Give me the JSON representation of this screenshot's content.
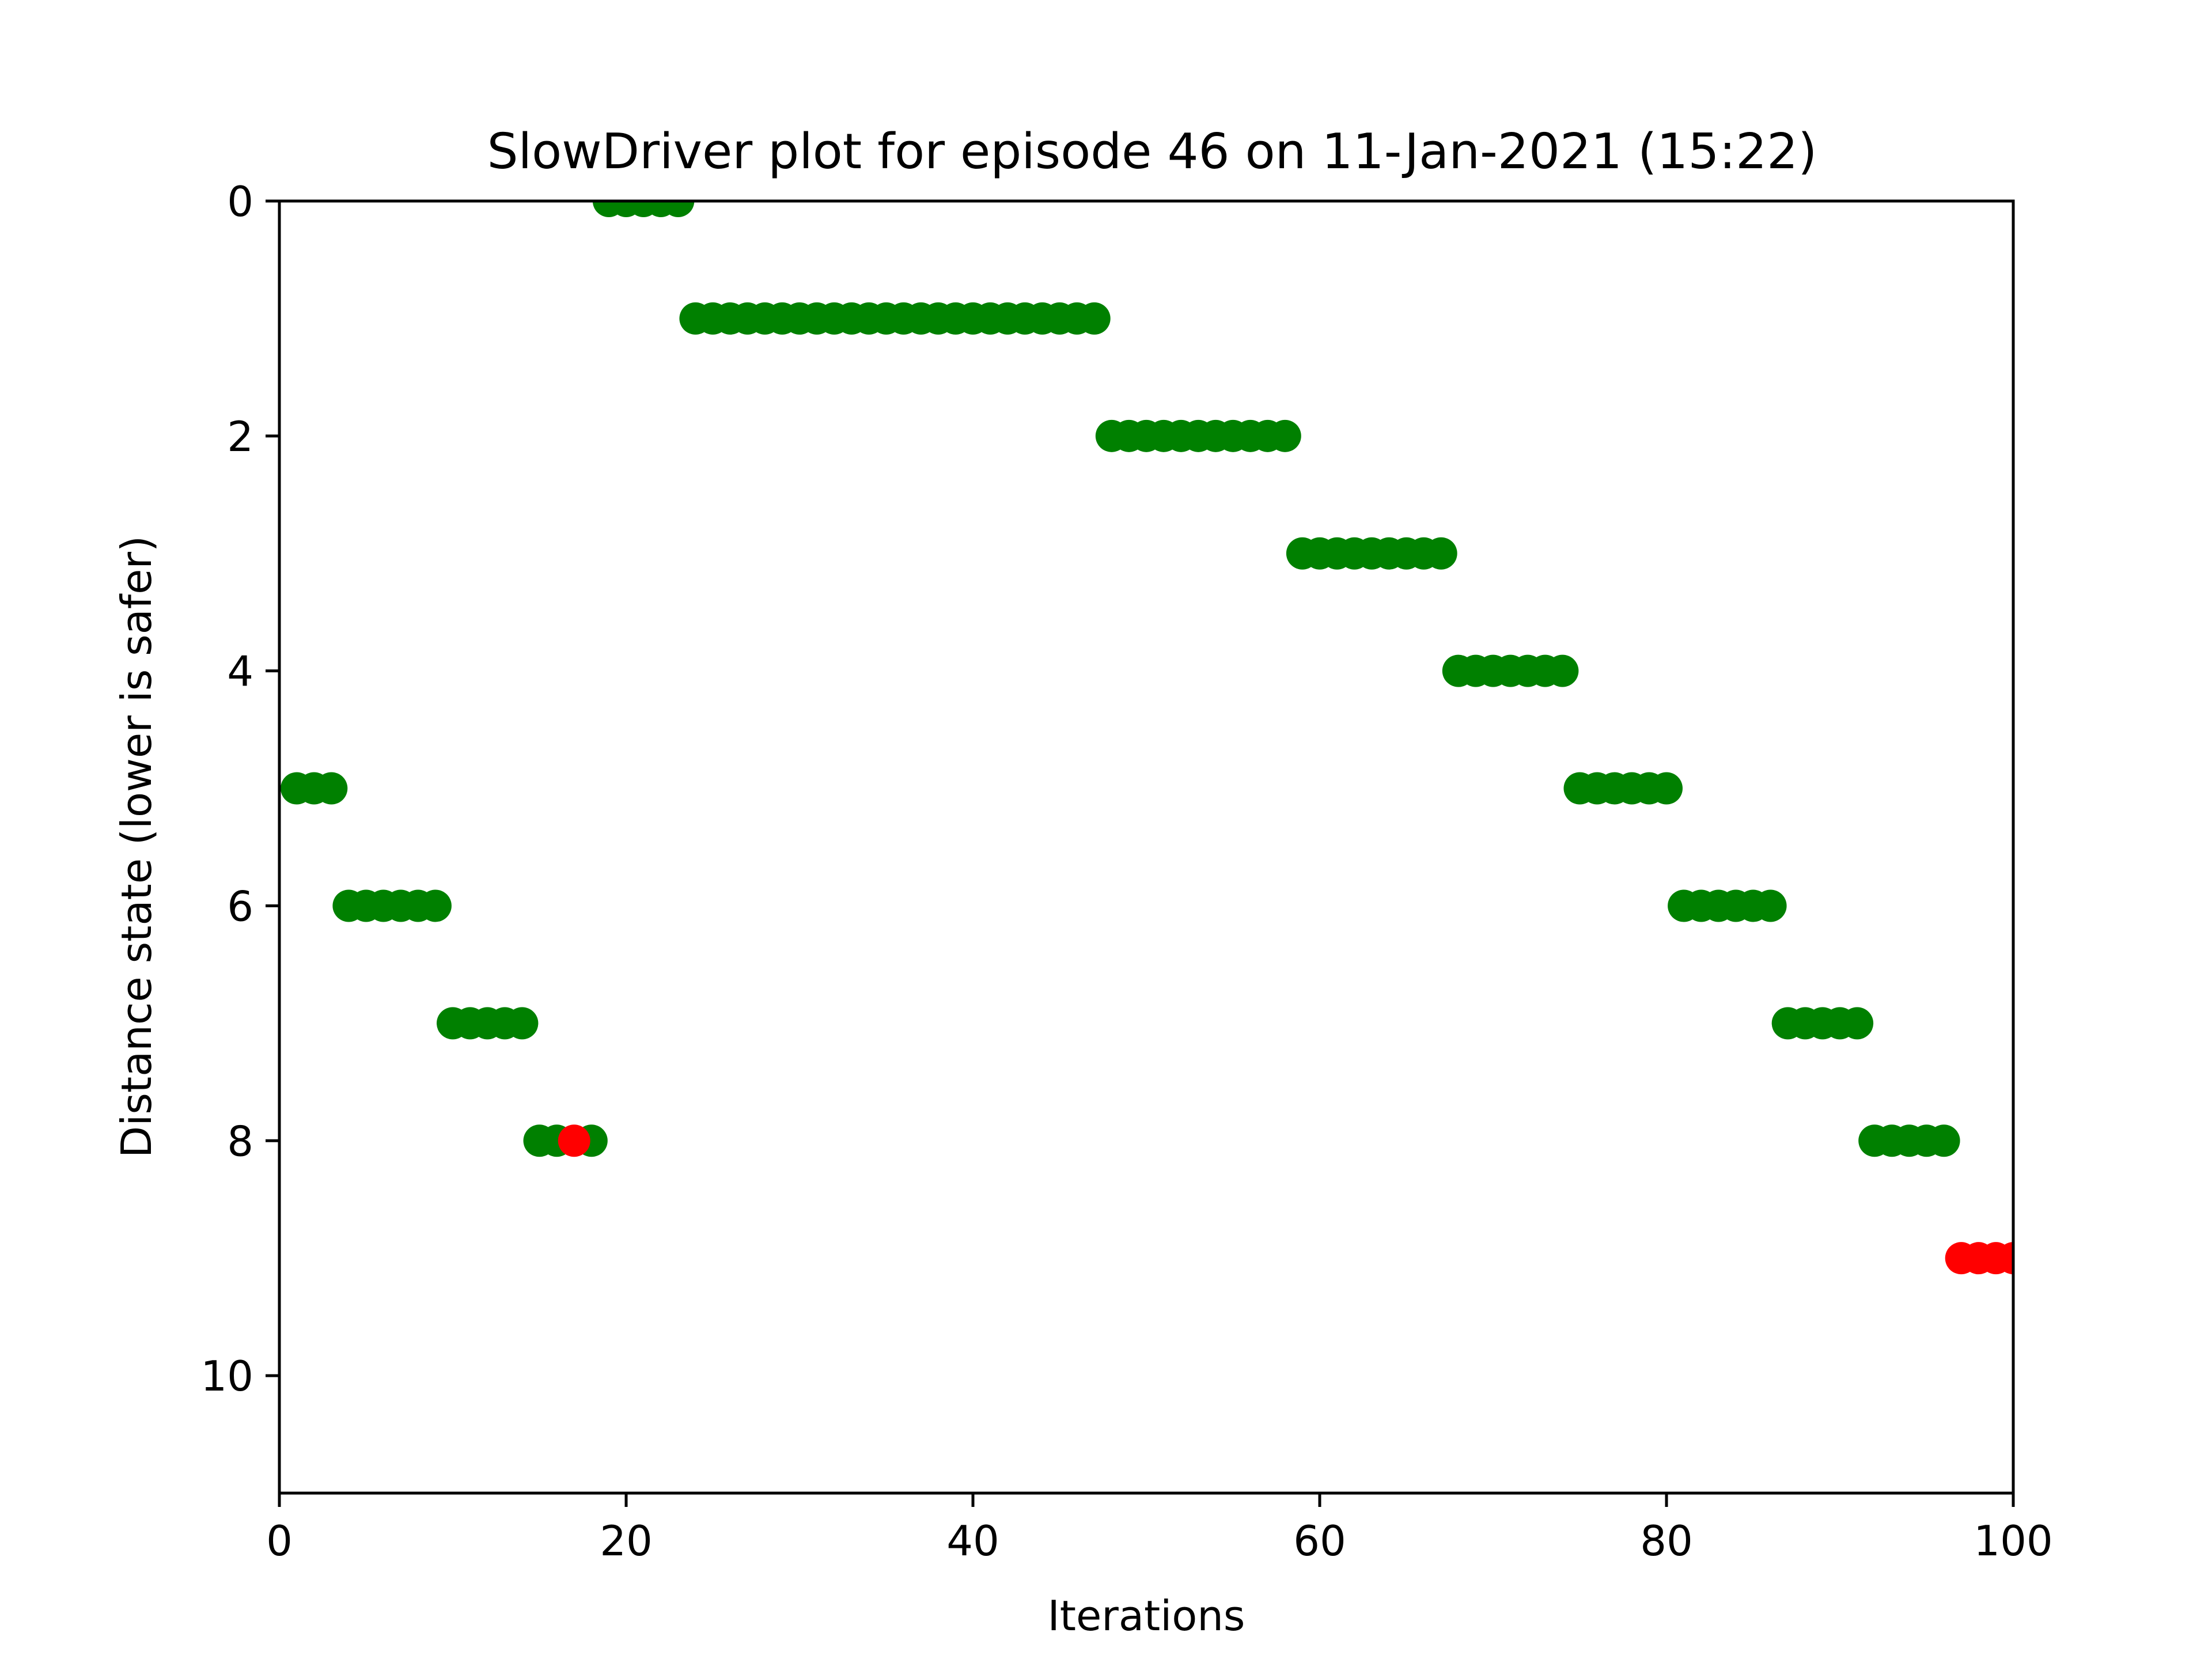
{
  "chart_data": {
    "type": "scatter",
    "title": "SlowDriver plot for episode 46 on 11-Jan-2021 (15:22)",
    "xlabel": "Iterations",
    "ylabel": "Distance state (lower is safer)",
    "xlim": [
      0,
      100
    ],
    "ylim": [
      11,
      0
    ],
    "y_inverted": true,
    "xticks": [
      "0",
      "20",
      "40",
      "60",
      "80",
      "100"
    ],
    "yticks": [
      "0",
      "2",
      "4",
      "6",
      "8",
      "10"
    ],
    "grid": false,
    "legend": "none",
    "colors": {
      "safe": "#008000",
      "unsafe": "#ff0000"
    },
    "series": [
      {
        "color": "#008000",
        "points": [
          [
            1,
            5
          ],
          [
            2,
            5
          ],
          [
            3,
            5
          ],
          [
            4,
            6
          ],
          [
            5,
            6
          ],
          [
            6,
            6
          ],
          [
            7,
            6
          ],
          [
            8,
            6
          ],
          [
            9,
            6
          ],
          [
            10,
            7
          ],
          [
            11,
            7
          ],
          [
            12,
            7
          ],
          [
            13,
            7
          ],
          [
            14,
            7
          ],
          [
            15,
            8
          ],
          [
            16,
            8
          ],
          [
            18,
            8
          ],
          [
            19,
            0
          ],
          [
            20,
            0
          ],
          [
            21,
            0
          ],
          [
            22,
            0
          ],
          [
            23,
            0
          ],
          [
            24,
            1
          ],
          [
            25,
            1
          ],
          [
            26,
            1
          ],
          [
            27,
            1
          ],
          [
            28,
            1
          ],
          [
            29,
            1
          ],
          [
            30,
            1
          ],
          [
            31,
            1
          ],
          [
            32,
            1
          ],
          [
            33,
            1
          ],
          [
            34,
            1
          ],
          [
            35,
            1
          ],
          [
            36,
            1
          ],
          [
            37,
            1
          ],
          [
            38,
            1
          ],
          [
            39,
            1
          ],
          [
            40,
            1
          ],
          [
            41,
            1
          ],
          [
            42,
            1
          ],
          [
            43,
            1
          ],
          [
            44,
            1
          ],
          [
            45,
            1
          ],
          [
            46,
            1
          ],
          [
            47,
            1
          ],
          [
            48,
            2
          ],
          [
            49,
            2
          ],
          [
            50,
            2
          ],
          [
            51,
            2
          ],
          [
            52,
            2
          ],
          [
            53,
            2
          ],
          [
            54,
            2
          ],
          [
            55,
            2
          ],
          [
            56,
            2
          ],
          [
            57,
            2
          ],
          [
            58,
            2
          ],
          [
            59,
            3
          ],
          [
            60,
            3
          ],
          [
            61,
            3
          ],
          [
            62,
            3
          ],
          [
            63,
            3
          ],
          [
            64,
            3
          ],
          [
            65,
            3
          ],
          [
            66,
            3
          ],
          [
            67,
            3
          ],
          [
            68,
            4
          ],
          [
            69,
            4
          ],
          [
            70,
            4
          ],
          [
            71,
            4
          ],
          [
            72,
            4
          ],
          [
            73,
            4
          ],
          [
            74,
            4
          ],
          [
            75,
            5
          ],
          [
            76,
            5
          ],
          [
            77,
            5
          ],
          [
            78,
            5
          ],
          [
            79,
            5
          ],
          [
            80,
            5
          ],
          [
            81,
            6
          ],
          [
            82,
            6
          ],
          [
            83,
            6
          ],
          [
            84,
            6
          ],
          [
            85,
            6
          ],
          [
            86,
            6
          ],
          [
            87,
            7
          ],
          [
            88,
            7
          ],
          [
            89,
            7
          ],
          [
            90,
            7
          ],
          [
            91,
            7
          ],
          [
            92,
            8
          ],
          [
            93,
            8
          ],
          [
            94,
            8
          ],
          [
            95,
            8
          ],
          [
            96,
            8
          ]
        ]
      },
      {
        "color": "#ff0000",
        "points": [
          [
            17,
            8
          ],
          [
            97,
            9
          ],
          [
            98,
            9
          ],
          [
            99,
            9
          ],
          [
            100,
            9
          ]
        ]
      }
    ]
  }
}
